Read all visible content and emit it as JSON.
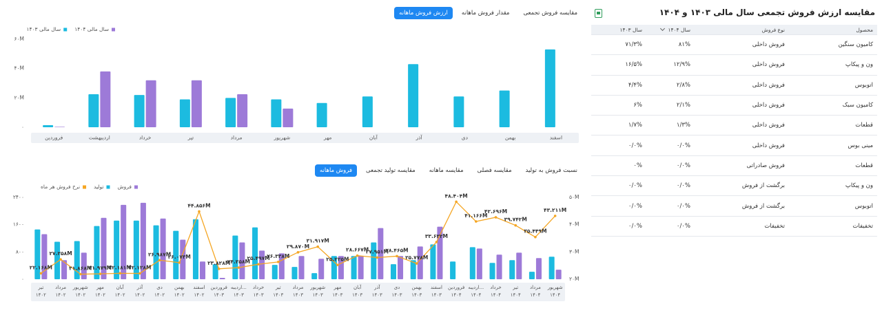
{
  "top_tabs": [
    "ارزش فروش ماهانه",
    "مقدار فروش ماهانه",
    "مقایسه فروش تجمعی"
  ],
  "bottom_tabs": [
    "فروش ماهانه",
    "مقایسه تولید تجمعی",
    "مقایسه ماهانه",
    "مقایسه فصلی",
    "نسبت فروش به تولید"
  ],
  "chart_data": [
    {
      "type": "bar",
      "categories": [
        "فروردین",
        "اردیبهشت",
        "خرداد",
        "تیر",
        "مرداد",
        "شهریور",
        "مهر",
        "آبان",
        "آذر",
        "دی",
        "بهمن",
        "اسفند"
      ],
      "series": [
        {
          "name": "سال مالی ۱۴۰۴",
          "color": "#9d7ad8",
          "values": [
            0.3,
            38,
            32,
            32,
            22.5,
            12.7,
            null,
            null,
            null,
            null,
            null,
            null
          ]
        },
        {
          "name": "سال مالی ۱۴۰۳",
          "color": "#1cbbe0",
          "values": [
            1.4,
            22.5,
            22,
            19,
            20,
            19,
            16.5,
            21,
            43,
            21,
            25,
            53
          ]
        }
      ],
      "ylim": [
        0,
        60
      ],
      "yticks": [
        {
          "value": 0,
          "label": "۰"
        },
        {
          "value": 20,
          "label": "۲۰M"
        },
        {
          "value": 40,
          "label": "۴۰M"
        },
        {
          "value": 60,
          "label": "۶۰M"
        }
      ],
      "grid": false
    },
    {
      "type": "bar",
      "categories": [
        [
          "تیر",
          "۱۴۰۲"
        ],
        [
          "مرداد",
          "۱۴۰۲"
        ],
        [
          "شهریور",
          "۱۴۰۲"
        ],
        [
          "مهر",
          "۱۴۰۲"
        ],
        [
          "آبان",
          "۱۴۰۲"
        ],
        [
          "آذر",
          "۱۴۰۲"
        ],
        [
          "دی",
          "۱۴۰۲"
        ],
        [
          "بهمن",
          "۱۴۰۲"
        ],
        [
          "اسفند",
          "۱۴۰۲"
        ],
        [
          "فروردین",
          "۱۴۰۳"
        ],
        [
          "اردیبه...",
          "۱۴۰۳"
        ],
        [
          "خرداد",
          "۱۴۰۳"
        ],
        [
          "تیر",
          "۱۴۰۳"
        ],
        [
          "مرداد",
          "۱۴۰۳"
        ],
        [
          "شهریور",
          "۱۴۰۳"
        ],
        [
          "مهر",
          "۱۴۰۳"
        ],
        [
          "آبان",
          "۱۴۰۳"
        ],
        [
          "آذر",
          "۱۴۰۳"
        ],
        [
          "دی",
          "۱۴۰۳"
        ],
        [
          "بهمن",
          "۱۴۰۳"
        ],
        [
          "اسفند",
          "۱۴۰۳"
        ],
        [
          "فروردین",
          "۱۴۰۴"
        ],
        [
          "اردیبه...",
          "۱۴۰۴"
        ],
        [
          "خرداد",
          "۱۴۰۴"
        ],
        [
          "تیر",
          "۱۴۰۴"
        ],
        [
          "مرداد",
          "۱۴۰۴"
        ],
        [
          "شهریور",
          "۱۴۰۴"
        ]
      ],
      "series": [
        {
          "name": "فروش",
          "color": "#9d7ad8",
          "values": [
            1320,
            560,
            780,
            1800,
            2180,
            2240,
            1780,
            1160,
            520,
            40,
            1080,
            840,
            760,
            680,
            600,
            680,
            680,
            1500,
            680,
            960,
            1540,
            null,
            900,
            720,
            780,
            620,
            280
          ]
        },
        {
          "name": "تولید",
          "color": "#1cbbe0",
          "values": [
            1460,
            1100,
            1120,
            1560,
            1720,
            1720,
            1580,
            1420,
            1760,
            440,
            1280,
            1520,
            420,
            360,
            180,
            680,
            680,
            1080,
            440,
            560,
            1020,
            520,
            940,
            480,
            560,
            220,
            660
          ]
        },
        {
          "name": "نرخ فروش هر ماه",
          "color": "#f5a623",
          "type": "line",
          "axis": "y2",
          "values": [
            22.168,
            27.258,
            21.868,
            21.979,
            22.181,
            22.128,
            26.987,
            26.073,
            44.856,
            23.828,
            24.258,
            25.497,
            26.338,
            29.87,
            31.917,
            25.225,
            28.667,
            27.951,
            28.465,
            25.778,
            33.632,
            48.404,
            41.166,
            42.696,
            39.742,
            35.449,
            43.211
          ],
          "value_labels": [
            "۲۲.۱۶۸M",
            "۲۷.۲۵۸M",
            "۲۱.۸۶۸M",
            "۲۱.۹۷۹M",
            "۲۲.۱۸۱M",
            "۲۲.۱۲۸M",
            "۲۶.۹۸۷M",
            "۲۶.۰۷۳M",
            "۴۴.۸۵۶M",
            "۲۳.۸۲۸M",
            "۲۴.۲۵۸M",
            "۲۵.۴۹۷M",
            "۲۶.۳۳۸M",
            "۲۹.۸۷۰M",
            "۳۱.۹۱۷M",
            "۲۵.۲۲۵M",
            "۲۸.۶۶۷M",
            "۲۷.۹۵۱M",
            "۲۸.۴۶۵M",
            "۲۵.۷۷۸M",
            "۳۳.۶۳۲M",
            "۴۸.۴۰۴M",
            "۴۱.۱۶۶M",
            "۴۲.۶۹۶M",
            "۳۹.۷۴۲M",
            "۳۵.۴۴۹M",
            "۴۳.۲۱۱M"
          ]
        }
      ],
      "ylim": [
        0,
        2400
      ],
      "yticks": [
        {
          "value": 0,
          "label": "۰"
        },
        {
          "value": 800,
          "label": "۸۰۰"
        },
        {
          "value": 1600,
          "label": "۱۶۰۰"
        },
        {
          "value": 2400,
          "label": "۲۴۰۰"
        }
      ],
      "y2lim": [
        20,
        50
      ],
      "y2ticks": [
        {
          "value": 20,
          "label": "۲۰M"
        },
        {
          "value": 30,
          "label": "۳۰M"
        },
        {
          "value": 40,
          "label": "۴۰M"
        },
        {
          "value": 50,
          "label": "۵۰M"
        }
      ],
      "grid": false
    }
  ],
  "table": {
    "title": "مقایسه ارزش فروش تجمعی سال مالی ۱۴۰۳ و ۱۴۰۴",
    "headers": [
      "محصول",
      "نوع فروش",
      "سال ۱۴۰۴",
      "سال ۱۴۰۳"
    ],
    "rows": [
      [
        "کامیون سنگین",
        "فروش داخلی",
        "۸۱%",
        "۷۱/۳%"
      ],
      [
        "ون و پیکاپ",
        "فروش داخلی",
        "۱۲/۹%",
        "۱۶/۵%"
      ],
      [
        "اتوبوس",
        "فروش داخلی",
        "۲/۸%",
        "۴/۴%"
      ],
      [
        "کامیون سبک",
        "فروش داخلی",
        "۲/۱%",
        "۶%"
      ],
      [
        "قطعات",
        "فروش داخلی",
        "۱/۳%",
        "۱/۷%"
      ],
      [
        "مینی بوس",
        "فروش داخلی",
        "۰/۰%",
        "۰/۰%"
      ],
      [
        "قطعات",
        "فروش صادراتی",
        "۰/۰%",
        "۰%"
      ],
      [
        "ون و پیکاپ",
        "برگشت از فروش",
        "۰/۰%",
        "۰/۰%"
      ],
      [
        "اتوبوس",
        "برگشت از فروش",
        "۰/۰%",
        "۰/۰%"
      ],
      [
        "تخفیفات",
        "تخفیفات",
        "۰/۰%",
        "۰/۰%"
      ]
    ]
  }
}
